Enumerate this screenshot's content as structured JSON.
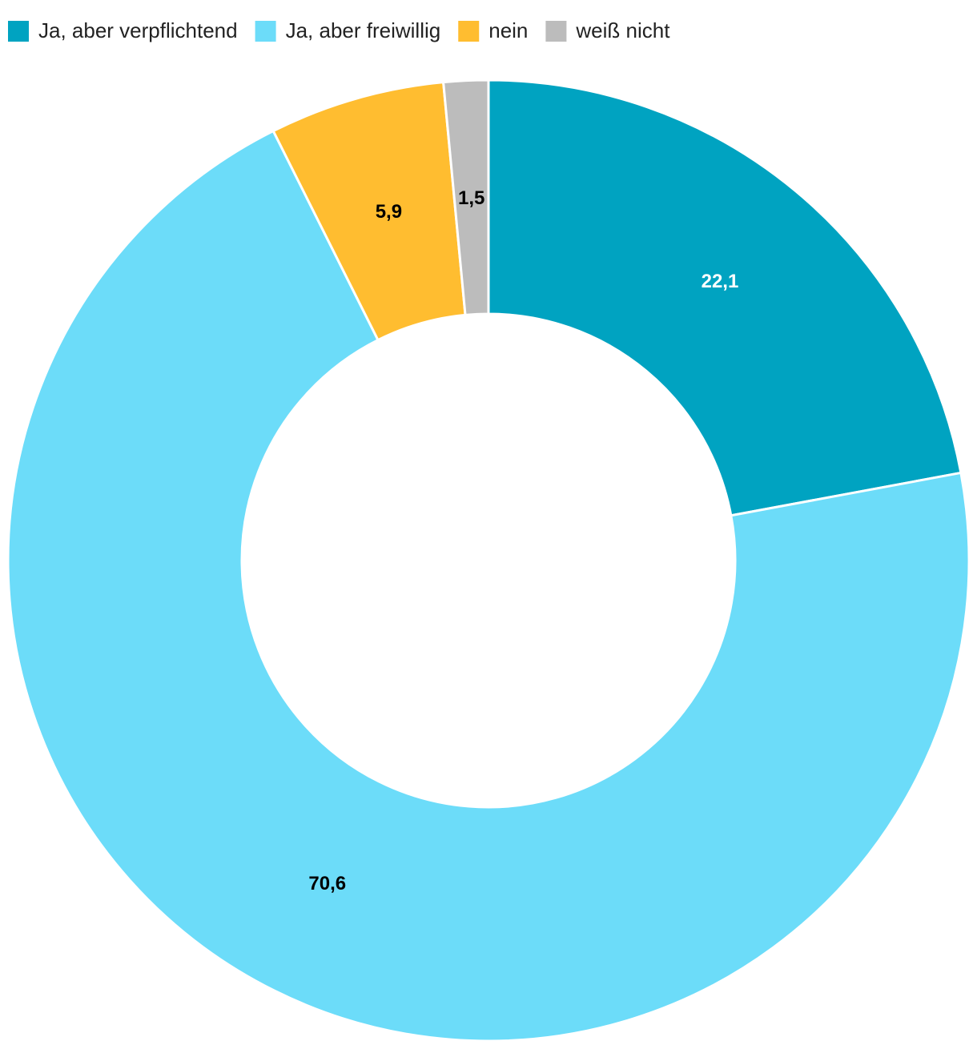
{
  "chart_data": {
    "type": "donut",
    "categories": [
      "Ja, aber verpflichtend",
      "Ja, aber freiwillig",
      "nein",
      "weiß nicht"
    ],
    "values": [
      22.1,
      70.6,
      5.9,
      1.5
    ],
    "value_labels": [
      "22,1",
      "70,6",
      "5,9",
      "1,5"
    ],
    "colors": [
      "#00a3c1",
      "#6cdcf9",
      "#ffbd30",
      "#bcbcbc"
    ]
  }
}
